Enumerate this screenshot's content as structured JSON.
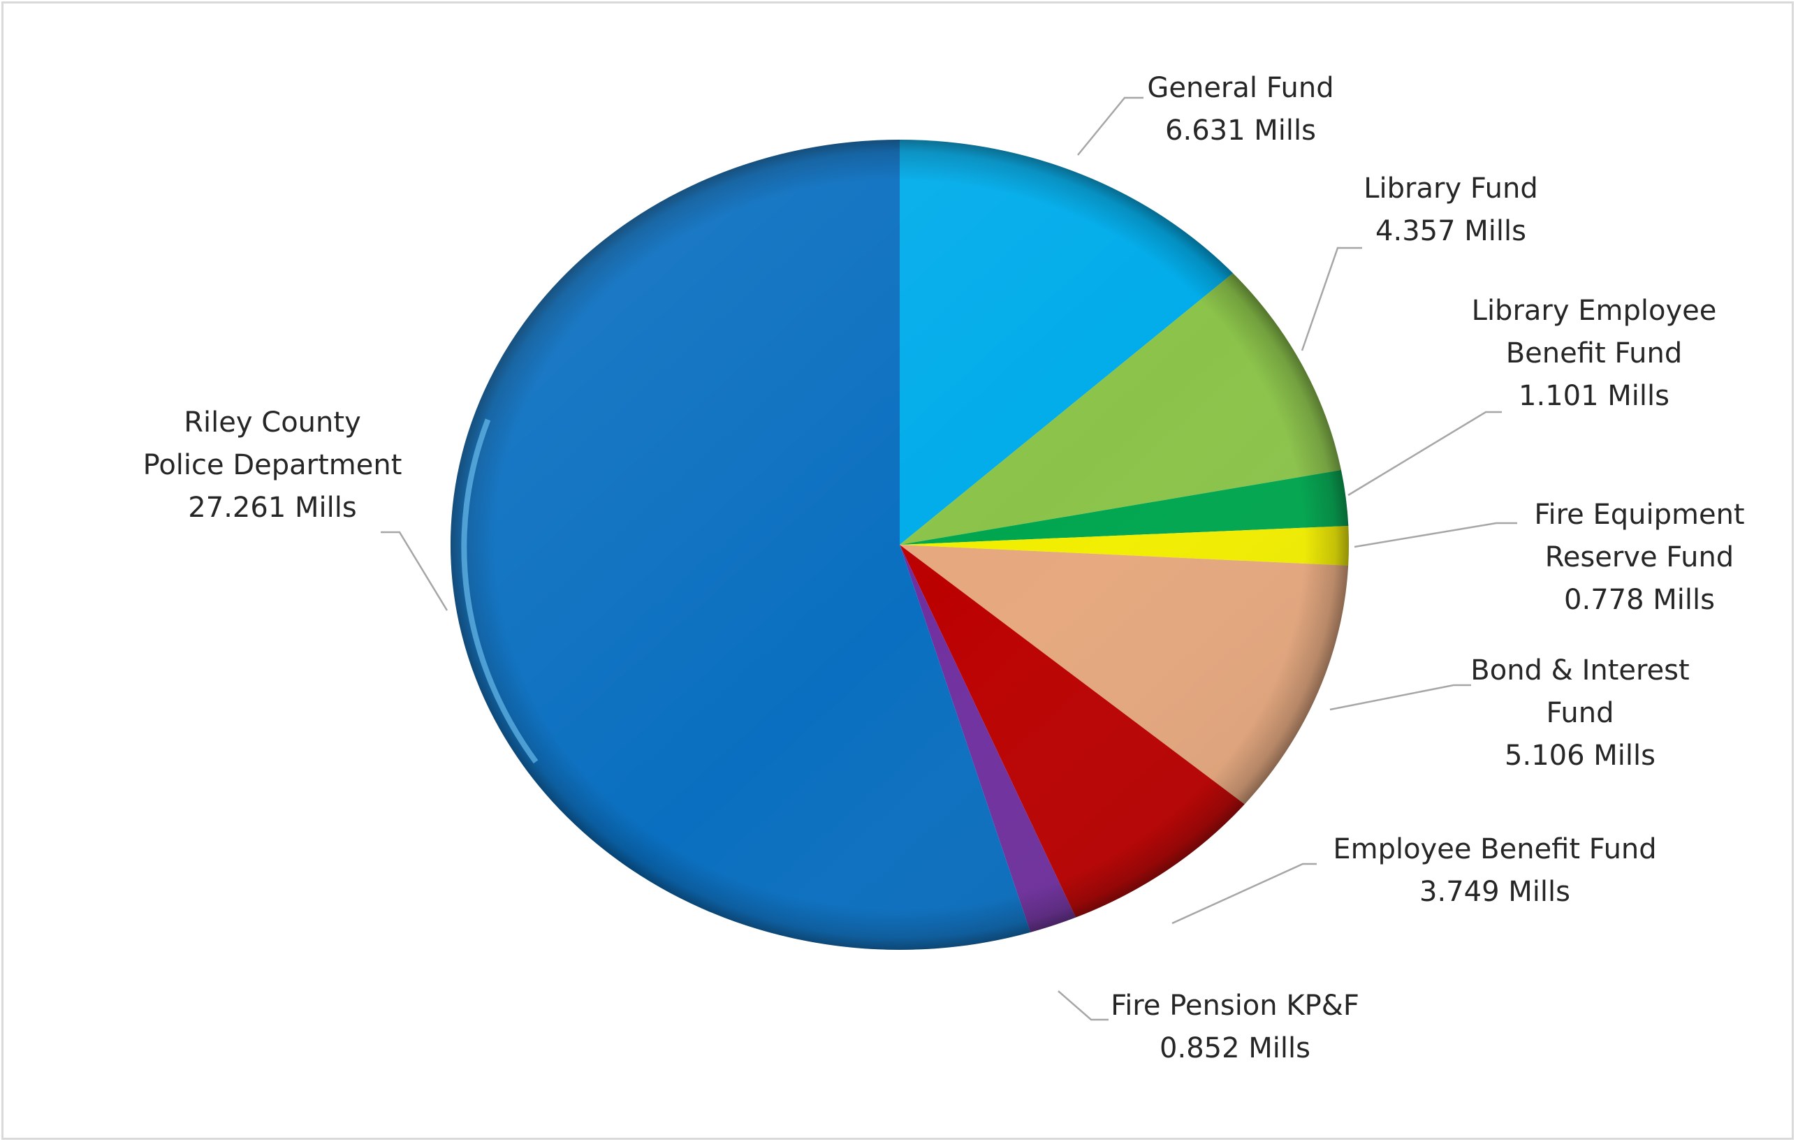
{
  "chart_data": {
    "type": "pie",
    "title": "",
    "unit": "Mills",
    "slices": [
      {
        "name_lines": [
          "General Fund"
        ],
        "value": 6.631,
        "value_label": "6.631 Mills",
        "color": "#00ACEA"
      },
      {
        "name_lines": [
          "Library Fund"
        ],
        "value": 4.357,
        "value_label": "4.357 Mills",
        "color": "#8BC34A"
      },
      {
        "name_lines": [
          "Library Employee",
          "Benefit Fund"
        ],
        "value": 1.101,
        "value_label": "1.101 Mills",
        "color": "#00A64F"
      },
      {
        "name_lines": [
          "Fire Equipment",
          "Reserve Fund"
        ],
        "value": 0.778,
        "value_label": "0.778 Mills",
        "color": "#F2EE00"
      },
      {
        "name_lines": [
          "Bond & Interest",
          "Fund"
        ],
        "value": 5.106,
        "value_label": "5.106 Mills",
        "color": "#E6A87E"
      },
      {
        "name_lines": [
          "Employee Benefit Fund"
        ],
        "value": 3.749,
        "value_label": "3.749 Mills",
        "color": "#BB0000"
      },
      {
        "name_lines": [
          "Fire Pension KP&F"
        ],
        "value": 0.852,
        "value_label": "0.852 Mills",
        "color": "#70309F"
      },
      {
        "name_lines": [
          "Riley County",
          "Police Department"
        ],
        "value": 27.261,
        "value_label": "27.261 Mills",
        "color": "#0A6FC0"
      }
    ],
    "legend": "none",
    "start_angle_deg": 0,
    "direction": "clockwise"
  }
}
